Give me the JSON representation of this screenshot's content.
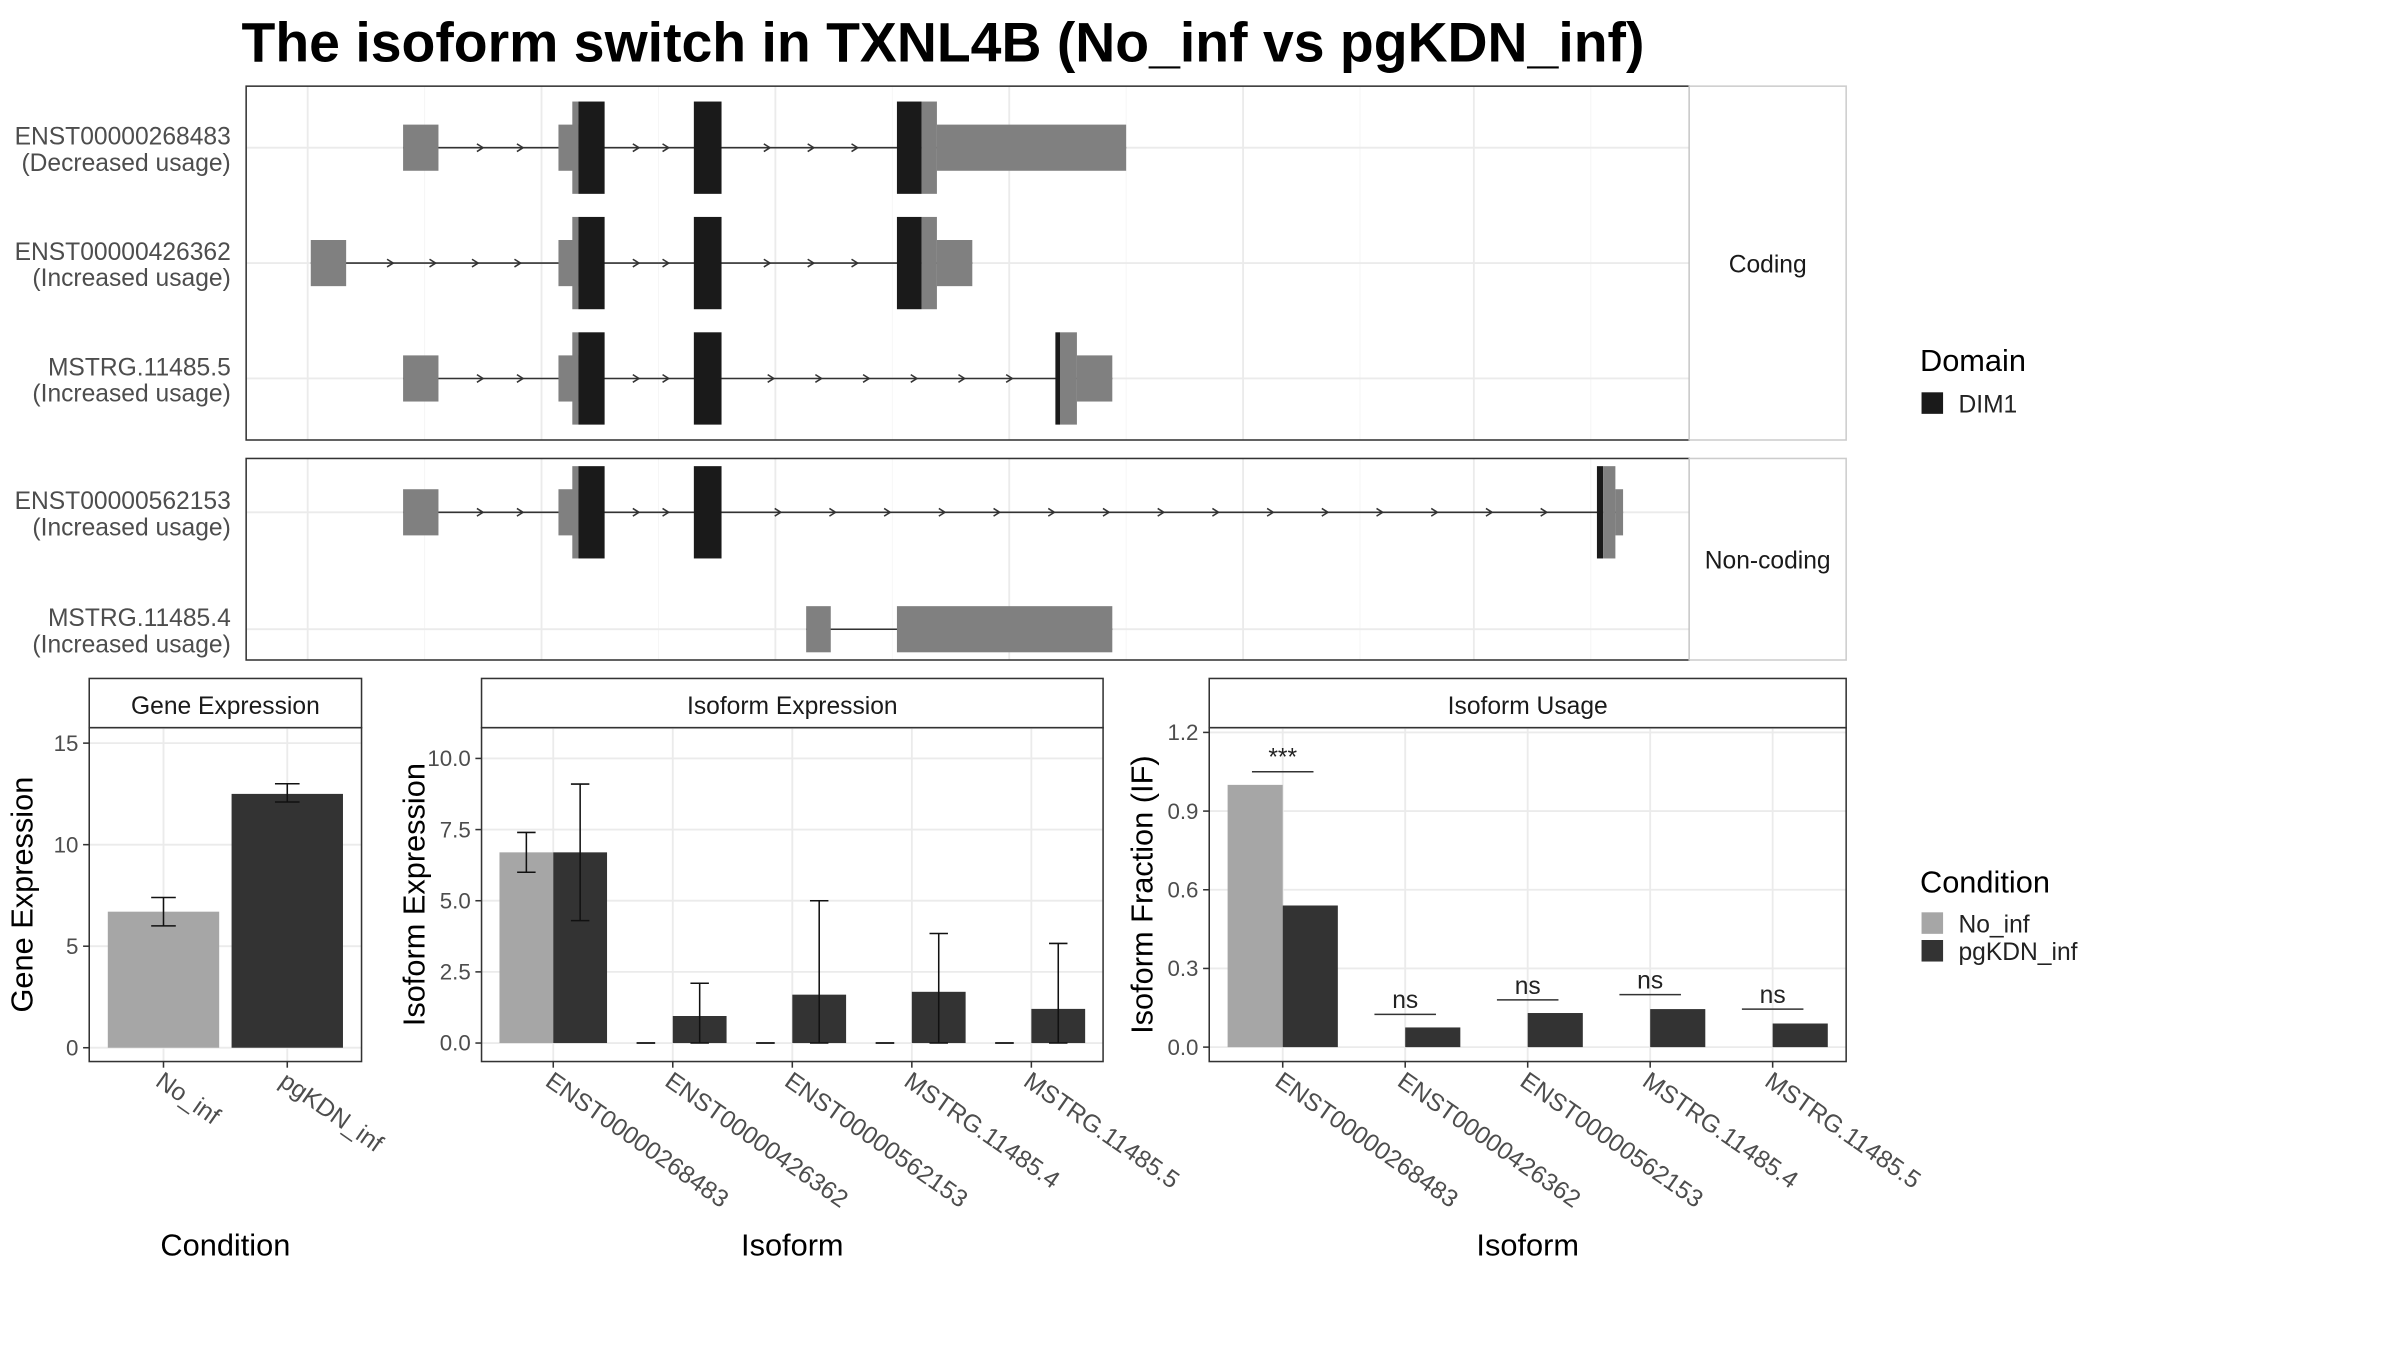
{
  "title": "The isoform switch in TXNL4B (No_inf vs pgKDN_inf)",
  "chart_data": [
    {
      "type": "transcripts",
      "groups": [
        "Coding",
        "Non-coding"
      ],
      "transcripts": [
        {
          "name": "ENST00000268483",
          "usage": "(Decreased usage)",
          "group": "Coding"
        },
        {
          "name": "ENST00000426362",
          "usage": "(Increased usage)",
          "group": "Coding"
        },
        {
          "name": "MSTRG.11485.5",
          "usage": "(Increased usage)",
          "group": "Coding"
        },
        {
          "name": "ENST00000562153",
          "usage": "(Increased usage)",
          "group": "Non-coding"
        },
        {
          "name": "MSTRG.11485.4",
          "usage": "(Increased usage)",
          "group": "Non-coding"
        }
      ],
      "legend_title": "Domain",
      "domains": [
        {
          "name": "DIM1",
          "color": "#1a1a1a"
        }
      ],
      "utr_color": "#808080"
    },
    {
      "type": "bar",
      "strip": "Gene Expression",
      "ylabel": "Gene Expression",
      "xlabel": "Condition",
      "categories": [
        "No_inf",
        "pgKDN_inf"
      ],
      "values": [
        6.7,
        12.5
      ],
      "colors": [
        "#a6a6a6",
        "#333333"
      ],
      "error_lower": [
        6.0,
        12.1
      ],
      "error_upper": [
        7.4,
        13.0
      ],
      "ylim": [
        -0.68,
        15.76
      ],
      "yticks": [
        0,
        5,
        10,
        15
      ],
      "grid": true,
      "legend_title": "Condition"
    },
    {
      "type": "grouped_bar",
      "strip": "Isoform Expression",
      "ylabel": "Isoform Expression",
      "xlabel": "Isoform",
      "categories": [
        "ENST00000268483",
        "ENST00000426362",
        "ENST00000562153",
        "MSTRG.11485.4",
        "MSTRG.11485.5"
      ],
      "series": [
        {
          "name": "No_inf",
          "color": "#a6a6a6",
          "values": [
            6.7,
            0,
            0,
            0,
            0
          ],
          "error_lower": [
            6.0,
            0,
            0,
            0,
            0
          ],
          "error_upper": [
            7.4,
            0,
            0,
            0,
            0
          ]
        },
        {
          "name": "pgKDN_inf",
          "color": "#333333",
          "values": [
            6.7,
            0.95,
            1.7,
            1.8,
            1.2
          ],
          "error_lower": [
            4.3,
            0,
            0,
            0,
            0
          ],
          "error_upper": [
            9.1,
            2.1,
            5.0,
            3.85,
            3.5
          ]
        }
      ],
      "ylim": [
        -0.65,
        11.08
      ],
      "yticks": [
        {
          "value": 0,
          "label": "0.0"
        },
        2.5,
        {
          "value": 5,
          "label": "5.0"
        },
        7.5,
        {
          "value": 10,
          "label": "10.0"
        }
      ],
      "grid": true
    },
    {
      "type": "grouped_bar",
      "strip": "Isoform Usage",
      "ylabel": "Isoform Fraction (IF)",
      "xlabel": "Isoform",
      "categories": [
        "ENST00000268483",
        "ENST00000426362",
        "ENST00000562153",
        "MSTRG.11485.4",
        "MSTRG.11485.5"
      ],
      "series": [
        {
          "name": "No_inf",
          "color": "#a6a6a6",
          "values": [
            1.0,
            0,
            0,
            0,
            0
          ]
        },
        {
          "name": "pgKDN_inf",
          "color": "#333333",
          "values": [
            0.54,
            0.075,
            0.13,
            0.145,
            0.09
          ]
        }
      ],
      "significance": [
        "***",
        "ns",
        "ns",
        "ns",
        "ns"
      ],
      "significance_y": [
        1.05,
        0.125,
        0.18,
        0.2,
        0.145
      ],
      "ylim": [
        -0.055,
        1.218
      ],
      "yticks": [
        {
          "value": 0,
          "label": "0.0"
        },
        0.3,
        0.6,
        0.9,
        1.2
      ],
      "grid": true
    }
  ]
}
